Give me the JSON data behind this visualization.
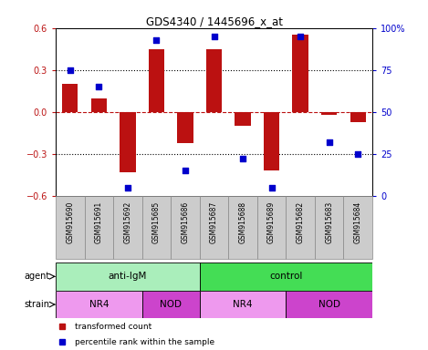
{
  "title": "GDS4340 / 1445696_x_at",
  "samples": [
    "GSM915690",
    "GSM915691",
    "GSM915692",
    "GSM915685",
    "GSM915686",
    "GSM915687",
    "GSM915688",
    "GSM915689",
    "GSM915682",
    "GSM915683",
    "GSM915684"
  ],
  "bar_values": [
    0.2,
    0.1,
    -0.43,
    0.45,
    -0.22,
    0.45,
    -0.1,
    -0.42,
    0.55,
    -0.02,
    -0.07
  ],
  "scatter_values": [
    75,
    65,
    5,
    93,
    15,
    95,
    22,
    5,
    95,
    32,
    25
  ],
  "bar_color": "#bb1111",
  "scatter_color": "#0000cc",
  "ylim": [
    -0.6,
    0.6
  ],
  "y2lim": [
    0,
    100
  ],
  "yticks": [
    -0.6,
    -0.3,
    0.0,
    0.3,
    0.6
  ],
  "y2ticks": [
    0,
    25,
    50,
    75,
    100
  ],
  "y2ticklabels": [
    "0",
    "25",
    "50",
    "75",
    "100%"
  ],
  "dotted_lines": [
    -0.3,
    0.3
  ],
  "agent_groups": [
    {
      "label": "anti-IgM",
      "start": 0,
      "end": 5,
      "color": "#aaeebb"
    },
    {
      "label": "control",
      "start": 5,
      "end": 11,
      "color": "#44dd55"
    }
  ],
  "strain_groups": [
    {
      "label": "NR4",
      "start": 0,
      "end": 3,
      "color": "#ee99ee"
    },
    {
      "label": "NOD",
      "start": 3,
      "end": 5,
      "color": "#cc44cc"
    },
    {
      "label": "NR4",
      "start": 5,
      "end": 8,
      "color": "#ee99ee"
    },
    {
      "label": "NOD",
      "start": 8,
      "end": 11,
      "color": "#cc44cc"
    }
  ],
  "legend_items": [
    {
      "label": "transformed count",
      "color": "#bb1111"
    },
    {
      "label": "percentile rank within the sample",
      "color": "#0000cc"
    }
  ],
  "bar_width": 0.55,
  "sample_box_color": "#cccccc",
  "sample_box_edge": "#888888"
}
